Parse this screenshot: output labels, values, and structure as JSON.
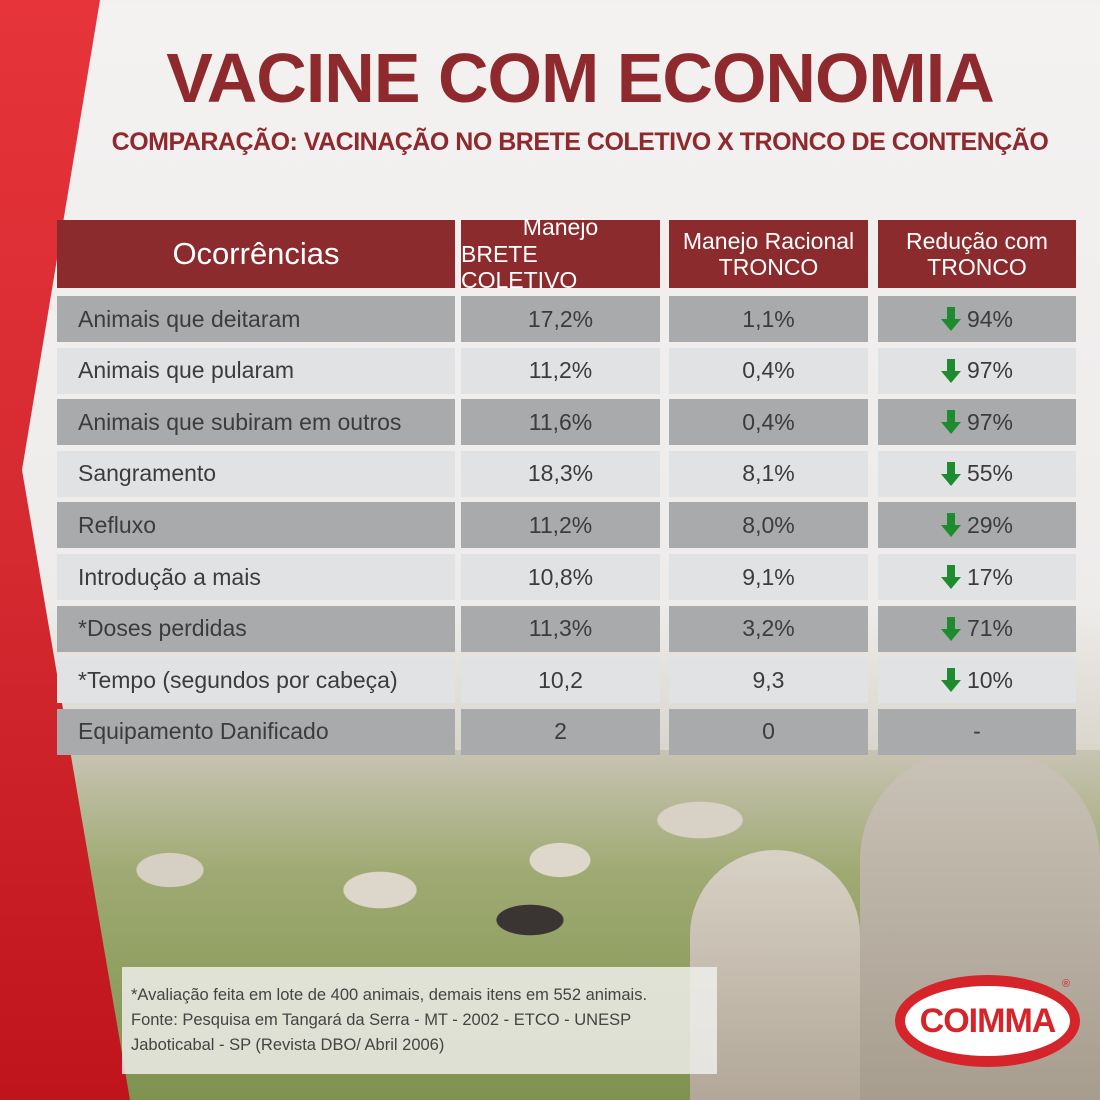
{
  "title": "VACINE COM ECONOMIA",
  "subtitle": "COMPARAÇÃO: VACINAÇÃO NO BRETE COLETIVO X  TRONCO DE CONTENÇÃO",
  "table": {
    "headers": [
      {
        "line1": "Ocorrências",
        "line2": ""
      },
      {
        "line1": "Manejo",
        "line2": "BRETE COLETIVO"
      },
      {
        "line1": "Manejo Racional",
        "line2": "TRONCO"
      },
      {
        "line1": "Redução com",
        "line2": "TRONCO"
      }
    ],
    "rows": [
      {
        "label": "Animais que deitaram",
        "brete": "17,2%",
        "tronco": "1,1%",
        "reducao": "94%",
        "arrow": true
      },
      {
        "label": "Animais que pularam",
        "brete": "11,2%",
        "tronco": "0,4%",
        "reducao": "97%",
        "arrow": true
      },
      {
        "label": "Animais que subiram em outros",
        "brete": "11,6%",
        "tronco": "0,4%",
        "reducao": "97%",
        "arrow": true
      },
      {
        "label": "Sangramento",
        "brete": "18,3%",
        "tronco": "8,1%",
        "reducao": "55%",
        "arrow": true
      },
      {
        "label": "Refluxo",
        "brete": "11,2%",
        "tronco": "8,0%",
        "reducao": "29%",
        "arrow": true
      },
      {
        "label": "Introdução a mais",
        "brete": "10,8%",
        "tronco": "9,1%",
        "reducao": "17%",
        "arrow": true
      },
      {
        "label": "*Doses perdidas",
        "brete": "11,3%",
        "tronco": "3,2%",
        "reducao": "71%",
        "arrow": true
      },
      {
        "label": "*Tempo (segundos por cabeça)",
        "brete": "10,2",
        "tronco": "9,3",
        "reducao": "10%",
        "arrow": true
      },
      {
        "label": "Equipamento Danificado",
        "brete": "2",
        "tronco": "0",
        "reducao": "-",
        "arrow": false
      }
    ]
  },
  "footnote": [
    "*Avaliação feita em lote de 400 animais, demais itens em 552 animais.",
    "Fonte: Pesquisa em Tangará da Serra - MT - 2002 - ETCO - UNESP",
    "Jaboticabal - SP (Revista DBO/ Abril 2006)"
  ],
  "logo": {
    "text": "COIMMA",
    "registered": "®"
  },
  "colors": {
    "header": "#8b2b2e",
    "row_dark": "#a9aaac",
    "row_light": "#e1e2e3",
    "arrow": "#1e8c2e",
    "brand": "#d6242b"
  }
}
